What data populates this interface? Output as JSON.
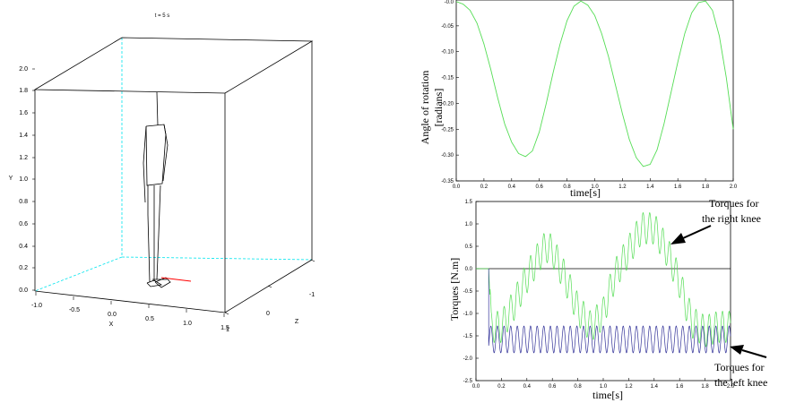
{
  "chart_data": [
    {
      "type": "line",
      "subtype": "3d-scene",
      "title": "t = 5 s",
      "xlabel": "X",
      "ylabel": "Y",
      "zlabel": "Z",
      "x_ticks": [
        "-1.0",
        "-0.5",
        "0.0",
        "0.5",
        "1.0",
        "1.5"
      ],
      "y_ticks": [
        "0.0",
        "0.2",
        "0.4",
        "0.6",
        "0.8",
        "1.0",
        "1.2",
        "1.4",
        "1.6",
        "1.8",
        "2.0"
      ],
      "z_ticks": [
        "-1",
        "0",
        "1"
      ],
      "box_color": "#000000",
      "hidden_axis_color": "#00e5ee",
      "figure_color": "#000000",
      "trace_color": "#ff0000"
    },
    {
      "type": "line",
      "xlabel": "time[s]",
      "ylabel_lines": [
        "Angle of rotation",
        "[radians]"
      ],
      "xlim": [
        0.0,
        2.0
      ],
      "ylim": [
        -0.35,
        0.0
      ],
      "x_ticks": [
        "0.0",
        "0.2",
        "0.4",
        "0.6",
        "0.8",
        "1.0",
        "1.2",
        "1.4",
        "1.6",
        "1.8",
        "2.0"
      ],
      "y_ticks": [
        "-0.05",
        "-0.10",
        "-0.15",
        "-0.20",
        "-0.25",
        "-0.30",
        "-0.35"
      ],
      "top_tick_partial": "-0.0",
      "series": [
        {
          "color": "#55dd55",
          "x": [
            0.0,
            0.05,
            0.1,
            0.15,
            0.2,
            0.25,
            0.3,
            0.35,
            0.4,
            0.45,
            0.5,
            0.55,
            0.6,
            0.65,
            0.7,
            0.75,
            0.8,
            0.85,
            0.9,
            0.95,
            1.0,
            1.05,
            1.1,
            1.15,
            1.2,
            1.25,
            1.3,
            1.35,
            1.4,
            1.45,
            1.5,
            1.55,
            1.6,
            1.65,
            1.7,
            1.75,
            1.8,
            1.85,
            1.9,
            1.95,
            2.0
          ],
          "y": [
            -0.003,
            -0.008,
            -0.02,
            -0.045,
            -0.085,
            -0.135,
            -0.19,
            -0.24,
            -0.275,
            -0.297,
            -0.303,
            -0.292,
            -0.255,
            -0.2,
            -0.14,
            -0.085,
            -0.04,
            -0.012,
            -0.002,
            -0.01,
            -0.03,
            -0.065,
            -0.11,
            -0.165,
            -0.22,
            -0.27,
            -0.305,
            -0.322,
            -0.318,
            -0.29,
            -0.24,
            -0.18,
            -0.12,
            -0.065,
            -0.025,
            -0.005,
            -0.002,
            -0.02,
            -0.07,
            -0.15,
            -0.25
          ]
        }
      ]
    },
    {
      "type": "line",
      "xlabel": "time[s]",
      "ylabel": "Torques    [N.m]",
      "xlim": [
        0.0,
        2.0
      ],
      "ylim": [
        -2.5,
        1.5
      ],
      "x_ticks": [
        "0.0",
        "0.2",
        "0.4",
        "0.6",
        "0.8",
        "1.0",
        "1.2",
        "1.4",
        "1.6",
        "1.8",
        "2.0"
      ],
      "y_ticks": [
        "1.5",
        "1.0",
        "0.5",
        "0.0",
        "-0.5",
        "-1.0",
        "-1.5",
        "-2.0",
        "-2.5"
      ],
      "zero_line": true,
      "annotations": [
        {
          "lines": [
            "Torques for",
            "the right knee"
          ],
          "points_to": "green"
        },
        {
          "lines": [
            "Torques for",
            "the left knee"
          ],
          "points_to": "blue"
        }
      ],
      "series": [
        {
          "color": "#55dd55",
          "envelope_time": [
            0.0,
            0.1,
            0.12,
            0.2,
            0.3,
            0.4,
            0.5,
            0.55,
            0.6,
            0.7,
            0.8,
            0.9,
            1.0,
            1.05,
            1.1,
            1.2,
            1.3,
            1.4,
            1.5,
            1.6,
            1.65,
            1.7,
            1.8,
            1.9,
            2.0
          ],
          "envelope_mid": [
            0.0,
            0.0,
            -1.3,
            -1.3,
            -0.8,
            -0.2,
            0.3,
            0.5,
            0.4,
            -0.2,
            -0.9,
            -1.3,
            -1.0,
            -0.5,
            -0.1,
            0.4,
            0.9,
            0.9,
            0.4,
            -0.3,
            -0.8,
            -1.2,
            -1.4,
            -1.3,
            -1.3
          ],
          "oscillation_amplitude": 0.35,
          "oscillation_period": 0.052
        },
        {
          "color": "#333399",
          "base_value": -1.58,
          "oscillation_amplitude": 0.3,
          "oscillation_period": 0.052,
          "start_time": 0.1
        }
      ]
    }
  ]
}
